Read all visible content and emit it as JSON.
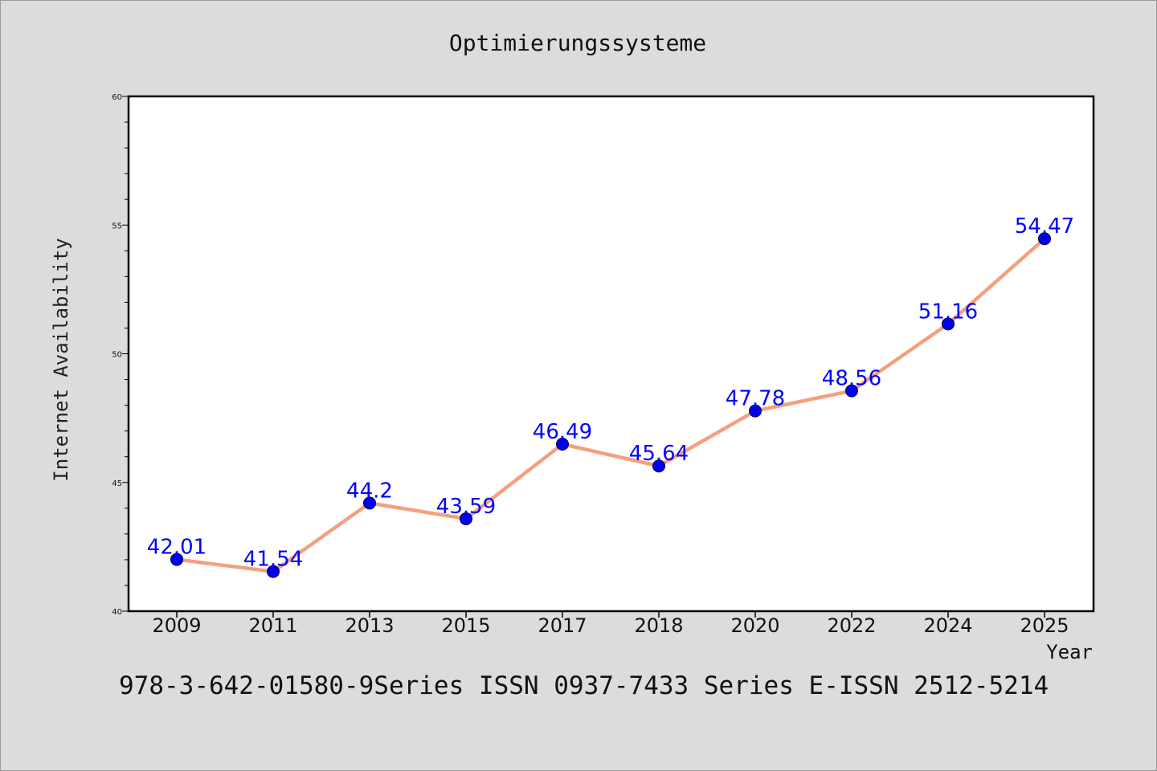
{
  "chart_data": {
    "type": "line",
    "title": "Optimierungssysteme",
    "xlabel": "Year",
    "ylabel": "Internet Availability",
    "categories": [
      "2009",
      "2011",
      "2013",
      "2015",
      "2017",
      "2018",
      "2020",
      "2022",
      "2024",
      "2025"
    ],
    "series": [
      {
        "values": [
          42.01,
          41.54,
          44.2,
          43.59,
          46.49,
          45.64,
          47.78,
          48.56,
          51.16,
          54.47
        ],
        "data_labels": [
          "42.01",
          "41.54",
          "44.2",
          "43.59",
          "46.49",
          "45.64",
          "47.78",
          "48.56",
          "51.16",
          "54.47"
        ]
      }
    ],
    "ylim": [
      40,
      60
    ],
    "yticks": [
      "40",
      "45",
      "50",
      "55",
      "60"
    ],
    "grid": false,
    "colors": {
      "line": "#f4a07e",
      "marker": "#0000ee",
      "label": "#0000ff",
      "background": "#dcdcdc",
      "plot_background": "#ffffff"
    }
  },
  "footer": {
    "text": "978-3-642-01580-9Series ISSN 0937-7433 Series E-ISSN 2512-5214"
  }
}
